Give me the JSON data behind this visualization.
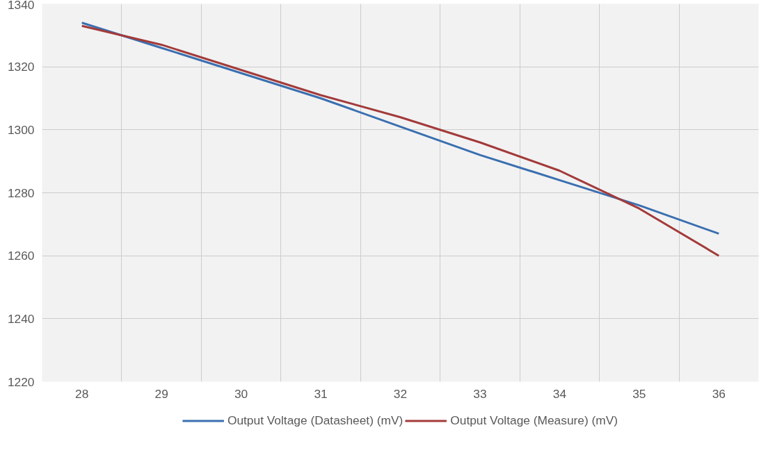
{
  "chart_data": {
    "type": "line",
    "categories": [
      "28",
      "29",
      "30",
      "31",
      "32",
      "33",
      "34",
      "35",
      "36"
    ],
    "series": [
      {
        "name": "Output Voltage (Datasheet) (mV)",
        "color": "#3a6fb0",
        "values": [
          1334,
          1326,
          1318,
          1310,
          1301,
          1292,
          1284,
          1276,
          1267
        ]
      },
      {
        "name": "Output Voltage (Measure) (mV)",
        "color": "#a33a3a",
        "values": [
          1333,
          1327,
          1319,
          1311,
          1304,
          1296,
          1287,
          1275,
          1260
        ]
      }
    ],
    "ylim": [
      1220,
      1340
    ],
    "yticks": [
      1220,
      1240,
      1260,
      1280,
      1300,
      1320,
      1340
    ],
    "grid": true,
    "legend": "bottom",
    "marker": "none",
    "line_style": "solid"
  }
}
